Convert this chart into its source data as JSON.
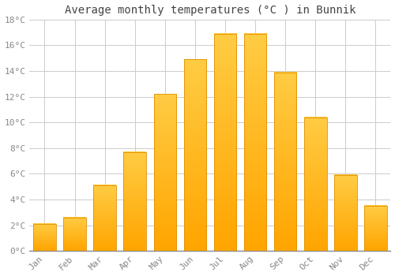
{
  "title": "Average monthly temperatures (°C ) in Bunnik",
  "months": [
    "Jan",
    "Feb",
    "Mar",
    "Apr",
    "May",
    "Jun",
    "Jul",
    "Aug",
    "Sep",
    "Oct",
    "Nov",
    "Dec"
  ],
  "values": [
    2.1,
    2.6,
    5.1,
    7.7,
    12.2,
    14.9,
    16.9,
    16.9,
    13.9,
    10.4,
    5.9,
    3.5
  ],
  "bar_color_top": "#FFCC44",
  "bar_color_bottom": "#FFA500",
  "bar_edge_color": "#E09000",
  "background_color": "#ffffff",
  "grid_color": "#cccccc",
  "ylim": [
    0,
    18
  ],
  "yticks": [
    0,
    2,
    4,
    6,
    8,
    10,
    12,
    14,
    16,
    18
  ],
  "ytick_labels": [
    "0°C",
    "2°C",
    "4°C",
    "6°C",
    "8°C",
    "10°C",
    "12°C",
    "14°C",
    "16°C",
    "18°C"
  ],
  "title_fontsize": 10,
  "tick_fontsize": 8,
  "title_color": "#444444",
  "tick_color": "#888888",
  "bar_width": 0.75
}
